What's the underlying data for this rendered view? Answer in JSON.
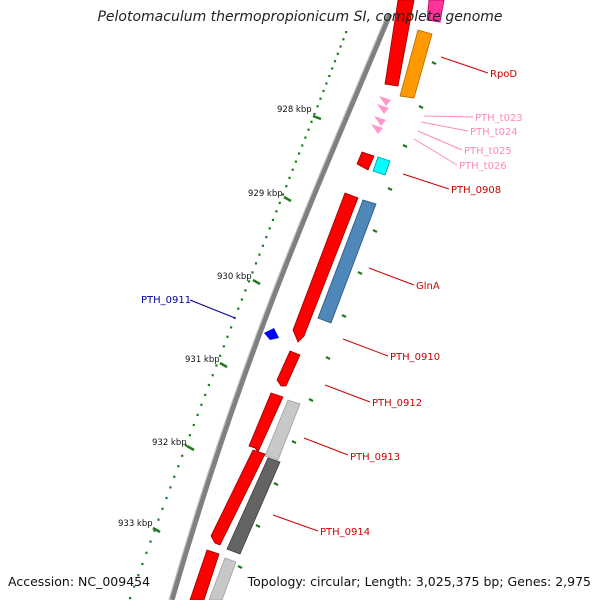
{
  "title": "Pelotomaculum thermopropionicum SI, complete genome",
  "accession": "Accession: NC_009454",
  "summary": "Topology: circular; Length: 3,025,375 bp; Genes: 2,975",
  "colors": {
    "backbone": "#808080",
    "gene_red": "#ff0000",
    "rpoD": "#ff9900",
    "trna": "#ff99cc",
    "cyan": "#00ffff",
    "glnA": "#4f87b8",
    "light_grey": "#c8c8c8",
    "dark_grey": "#646464",
    "blue": "#0000ff",
    "tick": "#1e7a1e"
  },
  "ruler_labels": [
    "928 kbp",
    "929 kbp",
    "930 kbp",
    "931 kbp",
    "932 kbp",
    "933 kbp"
  ],
  "gene_labels": [
    {
      "text": "RpoD",
      "color": "#cc0000"
    },
    {
      "text": "PTH_t023",
      "color": "#ff88bb"
    },
    {
      "text": "PTH_t024",
      "color": "#ff88bb"
    },
    {
      "text": "PTH_t025",
      "color": "#ff88bb"
    },
    {
      "text": "PTH_t026",
      "color": "#ff88bb"
    },
    {
      "text": "PTH_0908",
      "color": "#cc0000"
    },
    {
      "text": "GlnA",
      "color": "#cc0000"
    },
    {
      "text": "PTH_0911",
      "color": "#000099"
    },
    {
      "text": "PTH_0910",
      "color": "#cc0000"
    },
    {
      "text": "PTH_0912",
      "color": "#cc0000"
    },
    {
      "text": "PTH_0913",
      "color": "#cc0000"
    },
    {
      "text": "PTH_0914",
      "color": "#cc0000"
    }
  ]
}
